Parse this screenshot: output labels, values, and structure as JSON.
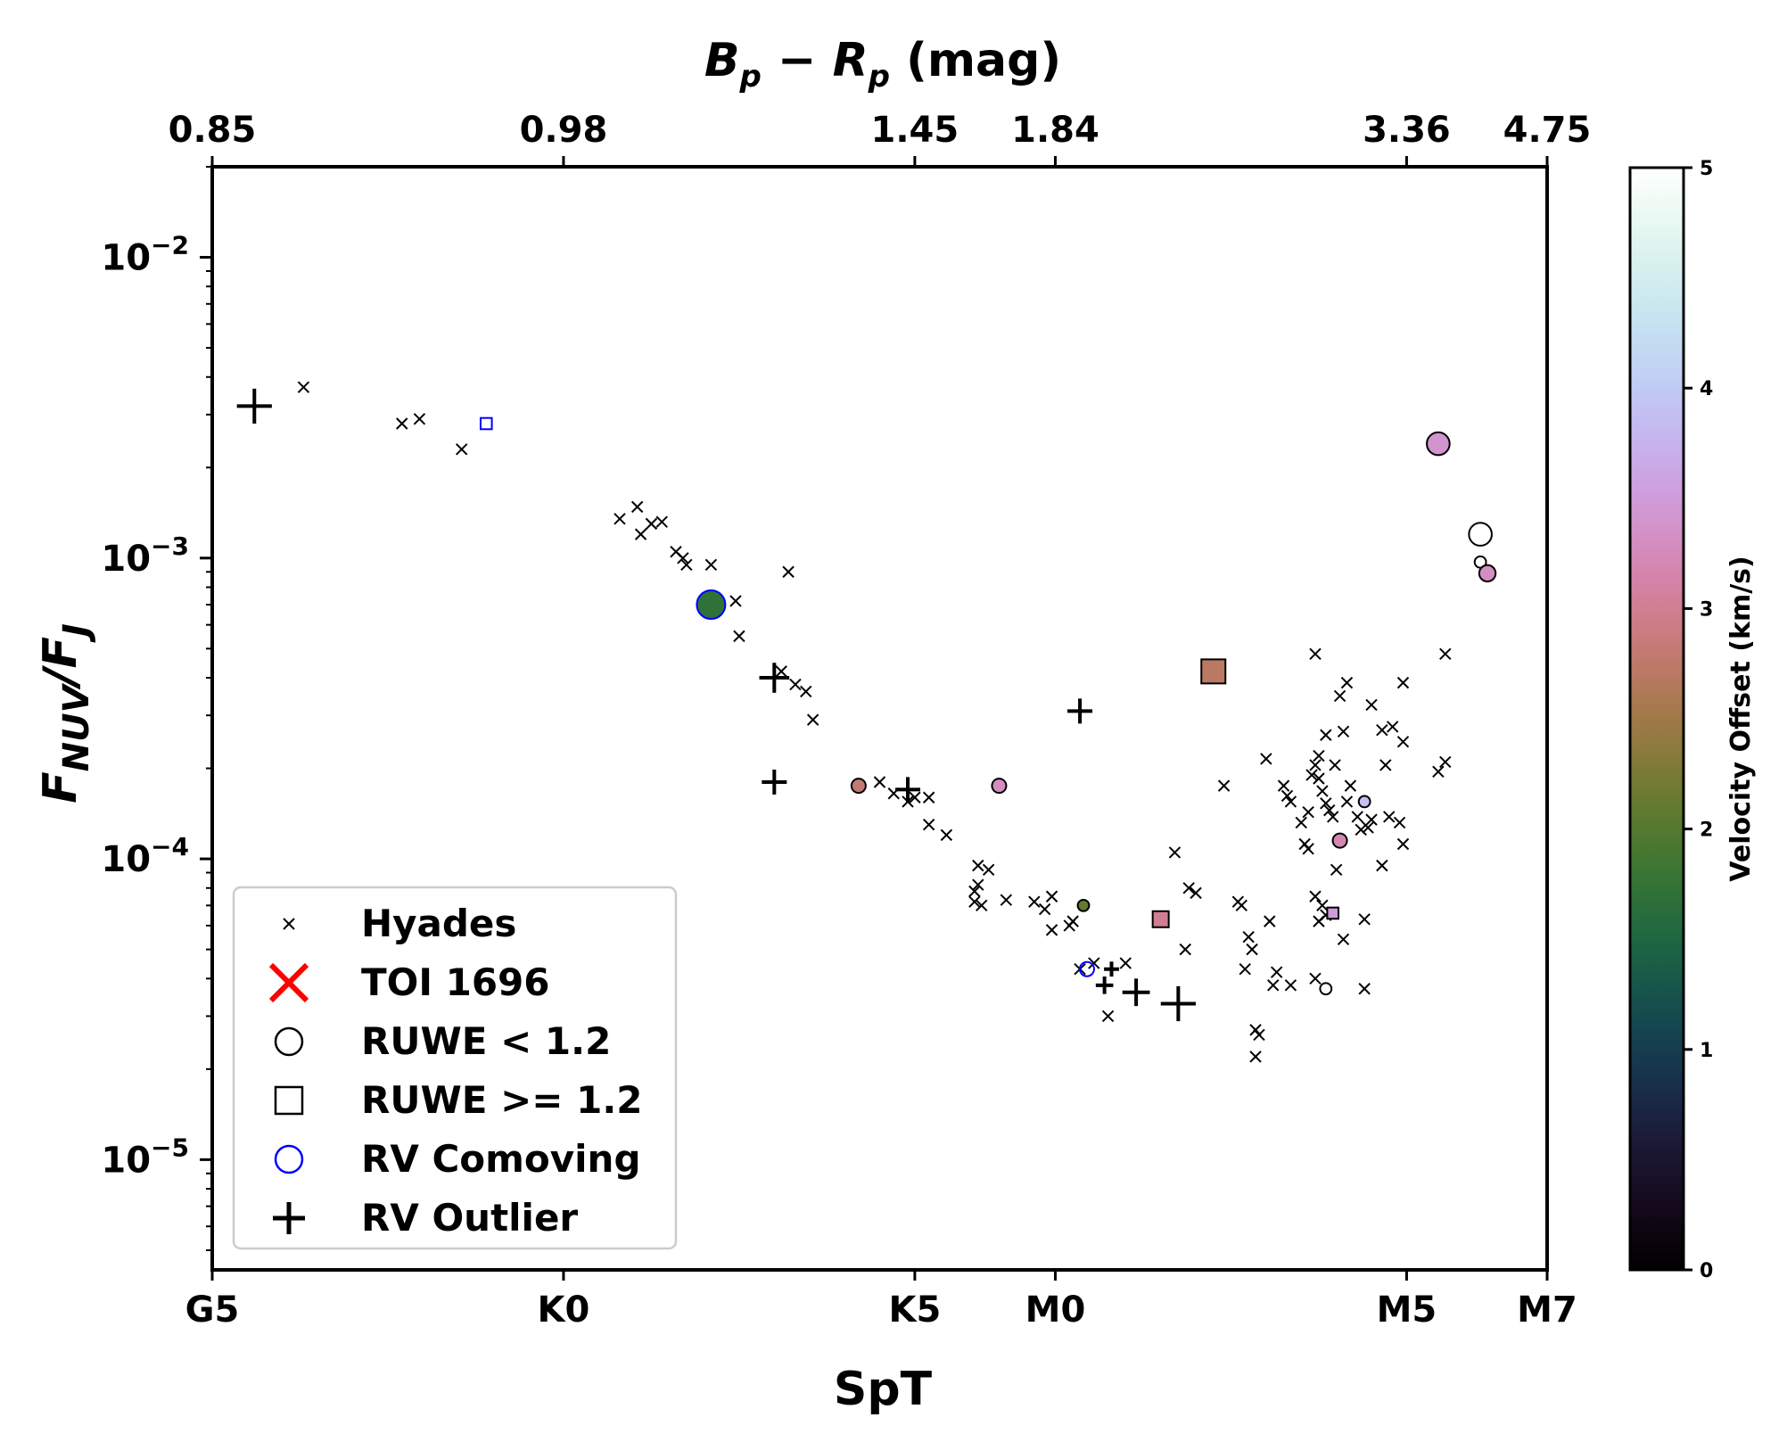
{
  "chart_data": {
    "type": "scatter",
    "x_axis": {
      "label": "SpT",
      "ticks": [
        {
          "value": 0,
          "label": "G5"
        },
        {
          "value": 5,
          "label": "K0"
        },
        {
          "value": 10,
          "label": "K5"
        },
        {
          "value": 12,
          "label": "M0"
        },
        {
          "value": 17,
          "label": "M5"
        },
        {
          "value": 19,
          "label": "M7"
        }
      ],
      "range": [
        0,
        19
      ]
    },
    "top_axis": {
      "label": "B_p − R_p (mag)",
      "label_parts": [
        "B",
        "p",
        " − R",
        "p",
        " (mag)"
      ],
      "ticks": [
        {
          "value": 0,
          "label": "0.85"
        },
        {
          "value": 5,
          "label": "0.98"
        },
        {
          "value": 10,
          "label": "1.45"
        },
        {
          "value": 12,
          "label": "1.84"
        },
        {
          "value": 17,
          "label": "3.36"
        },
        {
          "value": 19,
          "label": "4.75"
        }
      ]
    },
    "y_axis": {
      "label": "F_NUV/F_J",
      "scale": "log",
      "range": [
        4.3e-06,
        0.02
      ],
      "ticks": [
        {
          "value": 0.01,
          "base": "10",
          "exp": "−2"
        },
        {
          "value": 0.001,
          "base": "10",
          "exp": "−3"
        },
        {
          "value": 0.0001,
          "base": "10",
          "exp": "−4"
        },
        {
          "value": 1e-05,
          "base": "10",
          "exp": "−5"
        }
      ]
    },
    "colorbar": {
      "label": "Velocity Offset (km/s)",
      "range": [
        0,
        5
      ],
      "ticks": [
        "0",
        "1",
        "2",
        "3",
        "4",
        "5"
      ],
      "colormap": "cubehelix"
    },
    "legend": {
      "position": "lower-left",
      "entries": [
        {
          "label": "Hyades",
          "marker": "x-small",
          "color": "#000000"
        },
        {
          "label": "TOI 1696",
          "marker": "x-large",
          "color": "#ff0000"
        },
        {
          "label": "RUWE < 1.2",
          "marker": "circle-open",
          "color": "#000000"
        },
        {
          "label": "RUWE >= 1.2",
          "marker": "square-open",
          "color": "#000000"
        },
        {
          "label": "RV Comoving",
          "marker": "circle-open",
          "color": "#0000ff"
        },
        {
          "label": "RV Outlier",
          "marker": "plus",
          "color": "#000000"
        }
      ]
    },
    "series": [
      {
        "name": "Hyades",
        "marker": "x",
        "points": [
          [
            1.3,
            0.0037
          ],
          [
            2.7,
            0.0028
          ],
          [
            2.95,
            0.0029
          ],
          [
            3.55,
            0.0023
          ],
          [
            5.8,
            0.00135
          ],
          [
            6.05,
            0.00148
          ],
          [
            6.1,
            0.0012
          ],
          [
            6.25,
            0.0013
          ],
          [
            6.4,
            0.00132
          ],
          [
            6.6,
            0.00105
          ],
          [
            6.7,
            0.001
          ],
          [
            6.75,
            0.00095
          ],
          [
            7.1,
            0.00095
          ],
          [
            7.45,
            0.00072
          ],
          [
            7.5,
            0.00055
          ],
          [
            8.2,
            0.0009
          ],
          [
            8.1,
            0.00042
          ],
          [
            8.3,
            0.00038
          ],
          [
            8.45,
            0.00036
          ],
          [
            8.55,
            0.00029
          ],
          [
            9.5,
            0.00018
          ],
          [
            9.7,
            0.000165
          ],
          [
            9.9,
            0.000155
          ],
          [
            10.2,
            0.00016
          ],
          [
            10.0,
            0.00016
          ],
          [
            10.2,
            0.00013
          ],
          [
            10.45,
            0.00012
          ],
          [
            10.9,
            9.5e-05
          ],
          [
            11.05,
            9.2e-05
          ],
          [
            10.9,
            8.2e-05
          ],
          [
            10.85,
            7.8e-05
          ],
          [
            10.85,
            7.2e-05
          ],
          [
            10.95,
            7e-05
          ],
          [
            11.3,
            7.3e-05
          ],
          [
            11.7,
            7.2e-05
          ],
          [
            11.85,
            6.8e-05
          ],
          [
            11.95,
            7.5e-05
          ],
          [
            11.95,
            5.8e-05
          ],
          [
            12.2,
            6e-05
          ],
          [
            12.25,
            6.2e-05
          ],
          [
            12.35,
            4.3e-05
          ],
          [
            12.55,
            4.5e-05
          ],
          [
            12.75,
            3e-05
          ],
          [
            13.0,
            4.5e-05
          ],
          [
            13.7,
            0.000105
          ],
          [
            13.85,
            5e-05
          ],
          [
            13.9,
            8e-05
          ],
          [
            14.0,
            7.7e-05
          ],
          [
            14.4,
            0.000175
          ],
          [
            14.6,
            7.2e-05
          ],
          [
            14.65,
            7e-05
          ],
          [
            14.7,
            4.3e-05
          ],
          [
            14.75,
            5.5e-05
          ],
          [
            14.8,
            5e-05
          ],
          [
            14.85,
            2.7e-05
          ],
          [
            14.9,
            2.6e-05
          ],
          [
            14.85,
            2.2e-05
          ],
          [
            15.0,
            0.000215
          ],
          [
            15.05,
            6.2e-05
          ],
          [
            15.1,
            3.8e-05
          ],
          [
            15.15,
            4.2e-05
          ],
          [
            15.35,
            3.8e-05
          ],
          [
            15.25,
            0.000175
          ],
          [
            15.3,
            0.000162
          ],
          [
            15.35,
            0.000155
          ],
          [
            15.5,
            0.000132
          ],
          [
            15.55,
            0.000112
          ],
          [
            15.6,
            0.000108
          ],
          [
            15.6,
            0.000143
          ],
          [
            15.65,
            0.00019
          ],
          [
            15.7,
            0.000205
          ],
          [
            15.75,
            0.00022
          ],
          [
            15.75,
            0.000185
          ],
          [
            15.8,
            0.000168
          ],
          [
            15.85,
            0.000153
          ],
          [
            15.9,
            0.000145
          ],
          [
            15.7,
            0.00048
          ],
          [
            15.85,
            0.000258
          ],
          [
            15.95,
            0.000138
          ],
          [
            15.98,
            0.000205
          ],
          [
            16.05,
            0.000348
          ],
          [
            16.15,
            0.000385
          ],
          [
            16.2,
            0.000175
          ],
          [
            16.1,
            0.000265
          ],
          [
            16.15,
            0.000155
          ],
          [
            16.0,
            9.2e-05
          ],
          [
            16.3,
            0.000138
          ],
          [
            16.35,
            0.000125
          ],
          [
            16.45,
            0.000127
          ],
          [
            16.5,
            0.000135
          ],
          [
            16.5,
            0.000325
          ],
          [
            16.65,
            0.000268
          ],
          [
            16.7,
            0.000205
          ],
          [
            16.75,
            0.000138
          ],
          [
            16.8,
            0.000275
          ],
          [
            16.95,
            0.000245
          ],
          [
            16.9,
            0.000132
          ],
          [
            16.95,
            0.000112
          ],
          [
            16.95,
            0.000385
          ],
          [
            16.65,
            9.5e-05
          ],
          [
            15.7,
            7.5e-05
          ],
          [
            15.8,
            7e-05
          ],
          [
            15.75,
            6.2e-05
          ],
          [
            15.85,
            6.5e-05
          ],
          [
            16.1,
            5.4e-05
          ],
          [
            16.4,
            6.3e-05
          ],
          [
            15.7,
            4e-05
          ],
          [
            16.4,
            3.7e-05
          ],
          [
            17.55,
            0.00048
          ],
          [
            17.45,
            0.000195
          ],
          [
            17.55,
            0.00021
          ]
        ]
      },
      {
        "name": "RUWE < 1.2",
        "marker": "circle",
        "points": [
          {
            "x": 7.1,
            "y": 0.0007,
            "v": 1.7,
            "s": 2.0,
            "blue_edge": true
          },
          {
            "x": 9.2,
            "y": 0.000175,
            "v": 2.8,
            "s": 1.0
          },
          {
            "x": 11.2,
            "y": 0.000175,
            "v": 3.3,
            "s": 1.0
          },
          {
            "x": 12.4,
            "y": 7e-05,
            "v": 2.1,
            "s": 0.8
          },
          {
            "x": 12.45,
            "y": 4.3e-05,
            "v": null,
            "s": 1.0,
            "blue_edge": true
          },
          {
            "x": 15.85,
            "y": 3.7e-05,
            "v": 5.0,
            "s": 0.8
          },
          {
            "x": 16.05,
            "y": 0.000115,
            "v": 3.2,
            "s": 1.0
          },
          {
            "x": 16.4,
            "y": 0.000155,
            "v": 3.9,
            "s": 0.8
          },
          {
            "x": 17.45,
            "y": 0.0024,
            "v": 3.4,
            "s": 1.6
          },
          {
            "x": 18.05,
            "y": 0.0012,
            "v": 5.0,
            "s": 1.6
          },
          {
            "x": 18.05,
            "y": 0.00097,
            "v": 5.0,
            "s": 0.8
          },
          {
            "x": 18.15,
            "y": 0.00089,
            "v": 3.3,
            "s": 1.15
          }
        ]
      },
      {
        "name": "RUWE >= 1.2",
        "marker": "square",
        "points": [
          {
            "x": 3.9,
            "y": 0.0028,
            "v": null,
            "s": 0.7,
            "blue_edge": true
          },
          {
            "x": 13.5,
            "y": 6.3e-05,
            "v": 3.0,
            "s": 1.0
          },
          {
            "x": 14.25,
            "y": 0.00042,
            "v": 2.7,
            "s": 1.5
          },
          {
            "x": 15.95,
            "y": 6.6e-05,
            "v": 3.5,
            "s": 0.7
          }
        ]
      },
      {
        "name": "RV Outlier",
        "marker": "plus",
        "points": [
          {
            "x": 0.6,
            "y": 0.0032,
            "s": 1.4
          },
          {
            "x": 8.0,
            "y": 0.0004,
            "s": 1.2
          },
          {
            "x": 8.0,
            "y": 0.00018,
            "s": 1.0
          },
          {
            "x": 9.9,
            "y": 0.00017,
            "s": 1.0
          },
          {
            "x": 12.35,
            "y": 0.00031,
            "s": 1.0
          },
          {
            "x": 12.7,
            "y": 3.8e-05,
            "s": 0.7
          },
          {
            "x": 12.8,
            "y": 4.3e-05,
            "s": 0.6
          },
          {
            "x": 13.15,
            "y": 3.6e-05,
            "s": 1.1
          },
          {
            "x": 13.75,
            "y": 3.3e-05,
            "s": 1.4
          }
        ]
      }
    ]
  }
}
